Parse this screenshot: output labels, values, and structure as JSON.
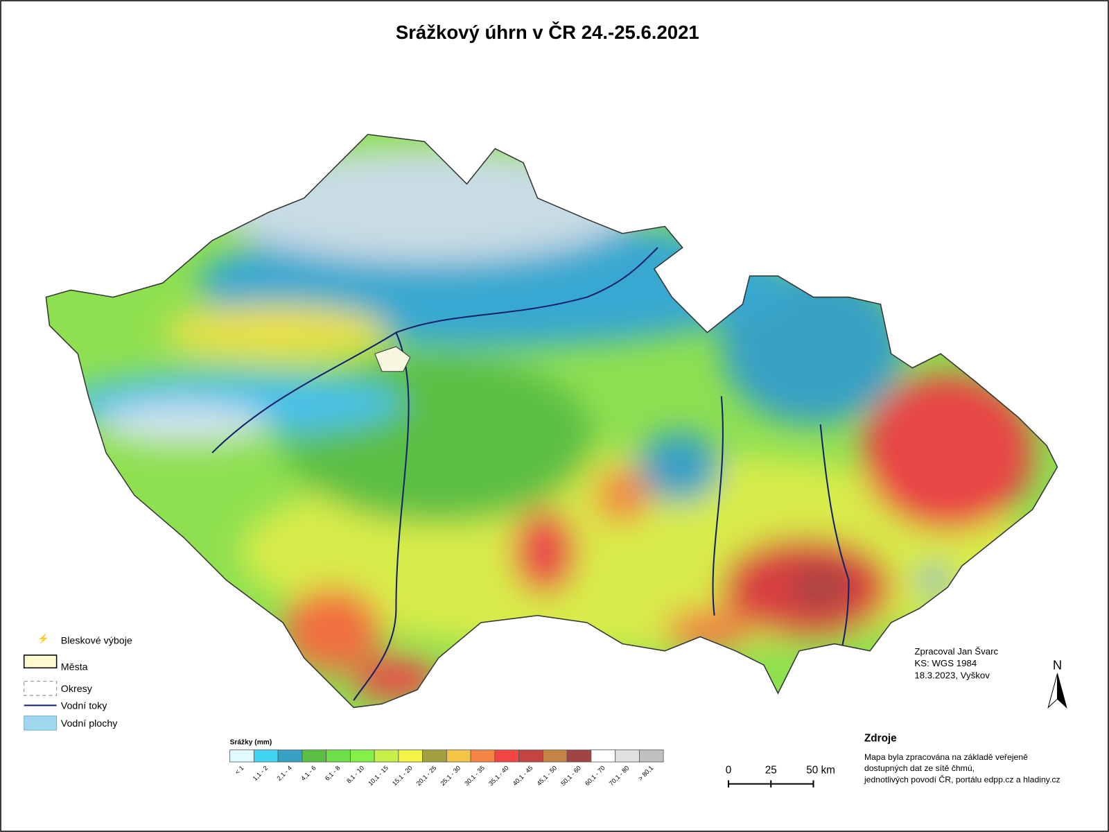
{
  "title": "Srážkový úhrn v ČR 24.-25.6.2021",
  "legend": {
    "items": [
      "Bleskové výboje",
      "Města",
      "Okresy",
      "Vodní toky",
      "Vodní plochy"
    ]
  },
  "color_scale": {
    "title": "Srážky (mm)",
    "classes": [
      {
        "label": "< 1",
        "color": "#e0faff"
      },
      {
        "label": "1,1 - 2",
        "color": "#40d4f4"
      },
      {
        "label": "2,1 - 4",
        "color": "#38a0c4"
      },
      {
        "label": "4,1 - 6",
        "color": "#5cbf44"
      },
      {
        "label": "6,1 - 8",
        "color": "#6ee04a"
      },
      {
        "label": "8,1 - 10",
        "color": "#84f048"
      },
      {
        "label": "10,1 - 15",
        "color": "#c4f048"
      },
      {
        "label": "15,1 - 20",
        "color": "#f4f444"
      },
      {
        "label": "20,1 - 25",
        "color": "#a4a040"
      },
      {
        "label": "25,1 - 30",
        "color": "#f4c444"
      },
      {
        "label": "30,1 - 35",
        "color": "#f48444"
      },
      {
        "label": "35,1 - 40",
        "color": "#f44444"
      },
      {
        "label": "40,1 - 45",
        "color": "#c44444"
      },
      {
        "label": "45,1 - 50",
        "color": "#c48444"
      },
      {
        "label": "50,1 - 60",
        "color": "#a04444"
      },
      {
        "label": "60,1 - 70",
        "color": "#ffffff"
      },
      {
        "label": "70,1 - 80",
        "color": "#e0e0e0"
      },
      {
        "label": "> 80,1",
        "color": "#c0c0c0"
      }
    ]
  },
  "credits": [
    "Zpracoval Jan Švarc",
    "KS: WGS 1984",
    "18.3.2023, Vyškov"
  ],
  "north": "N",
  "scale_bar": {
    "labels": [
      "0",
      "25",
      "50 km"
    ]
  },
  "sources": {
    "title": "Zdroje",
    "lines": [
      "Mapa byla zpracována na základě veřejeně",
      "dostupných dat ze sítě čhmú,",
      "jednotlivých povodí ČR, portálu edpp.cz a hladiny.cz"
    ]
  }
}
